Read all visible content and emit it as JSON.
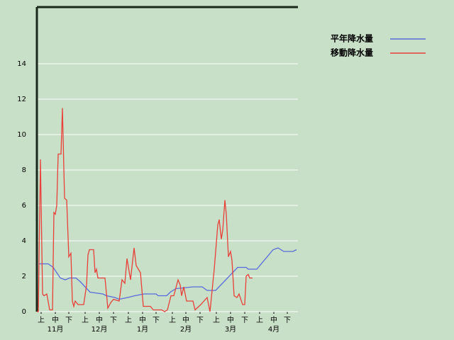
{
  "chart_data": {
    "type": "line",
    "series": [
      {
        "name": "平年降水量",
        "color": "#5a6adc",
        "x": [
          1.5,
          8,
          11.5,
          16.5,
          20,
          23,
          27.5,
          30.5,
          37.5,
          46.5,
          49,
          55,
          58,
          64,
          69,
          75.5,
          84,
          85.5,
          91.5,
          94,
          98,
          110,
          116.5,
          120,
          126,
          141.5,
          147.5,
          149,
          155,
          166.5,
          170,
          172,
          174,
          180.5,
          183
        ],
        "values": [
          2.7,
          2.7,
          2.5,
          1.9,
          1.8,
          1.9,
          1.9,
          1.7,
          1.1,
          1.0,
          0.9,
          0.8,
          0.7,
          0.8,
          0.9,
          1.0,
          1.0,
          0.9,
          0.9,
          1.1,
          1.3,
          1.4,
          1.4,
          1.2,
          1.2,
          2.5,
          2.5,
          2.4,
          2.4,
          3.5,
          3.6,
          3.5,
          3.4,
          3.4,
          3.5
        ]
      },
      {
        "name": "移動降水量",
        "color": "#e8403a",
        "x": [
          0,
          1,
          2.5,
          4,
          5,
          7,
          9,
          11,
          12,
          13,
          14,
          15,
          17,
          18,
          19.5,
          21,
          22.5,
          24,
          25,
          26,
          27,
          29,
          33,
          35,
          36,
          37,
          40,
          41,
          42,
          43,
          48,
          50,
          52,
          54,
          58,
          60,
          62,
          63.5,
          66,
          68.5,
          70,
          73,
          75,
          80,
          82,
          88,
          90,
          92,
          94.5,
          96.5,
          99.5,
          101,
          102,
          103.5,
          105.5,
          110,
          111.5,
          115.5,
          120,
          122,
          125,
          127.5,
          128.5,
          130,
          131,
          132.5,
          133.5,
          135,
          136.5,
          137.5,
          139,
          141,
          142.5,
          145,
          146.5,
          147.5,
          149,
          150,
          152
        ],
        "values": [
          0,
          0,
          8.6,
          1.0,
          0.9,
          1.0,
          0.1,
          0.1,
          5.6,
          5.5,
          6.0,
          8.9,
          8.9,
          11.5,
          6.4,
          6.3,
          3.1,
          3.3,
          0.6,
          0.3,
          0.6,
          0.4,
          0.4,
          1.5,
          3.2,
          3.5,
          3.5,
          2.2,
          2.4,
          1.9,
          1.9,
          0.2,
          0.5,
          0.7,
          0.6,
          1.8,
          1.6,
          3.0,
          1.8,
          3.6,
          2.6,
          2.2,
          0.3,
          0.3,
          0.1,
          0.1,
          0.0,
          0.1,
          0.9,
          0.9,
          1.8,
          1.5,
          0.9,
          1.4,
          0.6,
          0.6,
          0.1,
          0.4,
          0.8,
          0.0,
          2.4,
          4.9,
          5.2,
          4.1,
          4.6,
          6.3,
          5.5,
          3.1,
          3.4,
          2.9,
          0.9,
          0.8,
          1.0,
          0.4,
          0.4,
          2.0,
          2.1,
          1.9,
          1.9
        ]
      }
    ],
    "xlim": [
      0,
      184
    ],
    "xticks": [
      {
        "value": 3,
        "label": "上"
      },
      {
        "value": 13,
        "label": "中"
      },
      {
        "value": 22.5,
        "label": "下"
      },
      {
        "value": 34,
        "label": "上"
      },
      {
        "value": 44,
        "label": "中"
      },
      {
        "value": 54,
        "label": "下"
      },
      {
        "value": 64.5,
        "label": "上"
      },
      {
        "value": 74.5,
        "label": "中"
      },
      {
        "value": 84,
        "label": "下"
      },
      {
        "value": 95.5,
        "label": "上"
      },
      {
        "value": 105,
        "label": "中"
      },
      {
        "value": 115,
        "label": "下"
      },
      {
        "value": 126.5,
        "label": "上"
      },
      {
        "value": 136.5,
        "label": "中"
      },
      {
        "value": 146.5,
        "label": "下"
      },
      {
        "value": 157,
        "label": "上"
      },
      {
        "value": 167,
        "label": "中"
      },
      {
        "value": 176.5,
        "label": "下"
      }
    ],
    "month_labels": [
      {
        "value": 13,
        "label": "11月"
      },
      {
        "value": 44,
        "label": "12月"
      },
      {
        "value": 74.5,
        "label": "1月"
      },
      {
        "value": 105,
        "label": "2月"
      },
      {
        "value": 136.5,
        "label": "3月"
      },
      {
        "value": 167,
        "label": "4月"
      }
    ],
    "ylim": [
      0,
      17.2
    ],
    "yticks": [
      0,
      2,
      4,
      6,
      8,
      10,
      12,
      14
    ],
    "grid": true
  }
}
